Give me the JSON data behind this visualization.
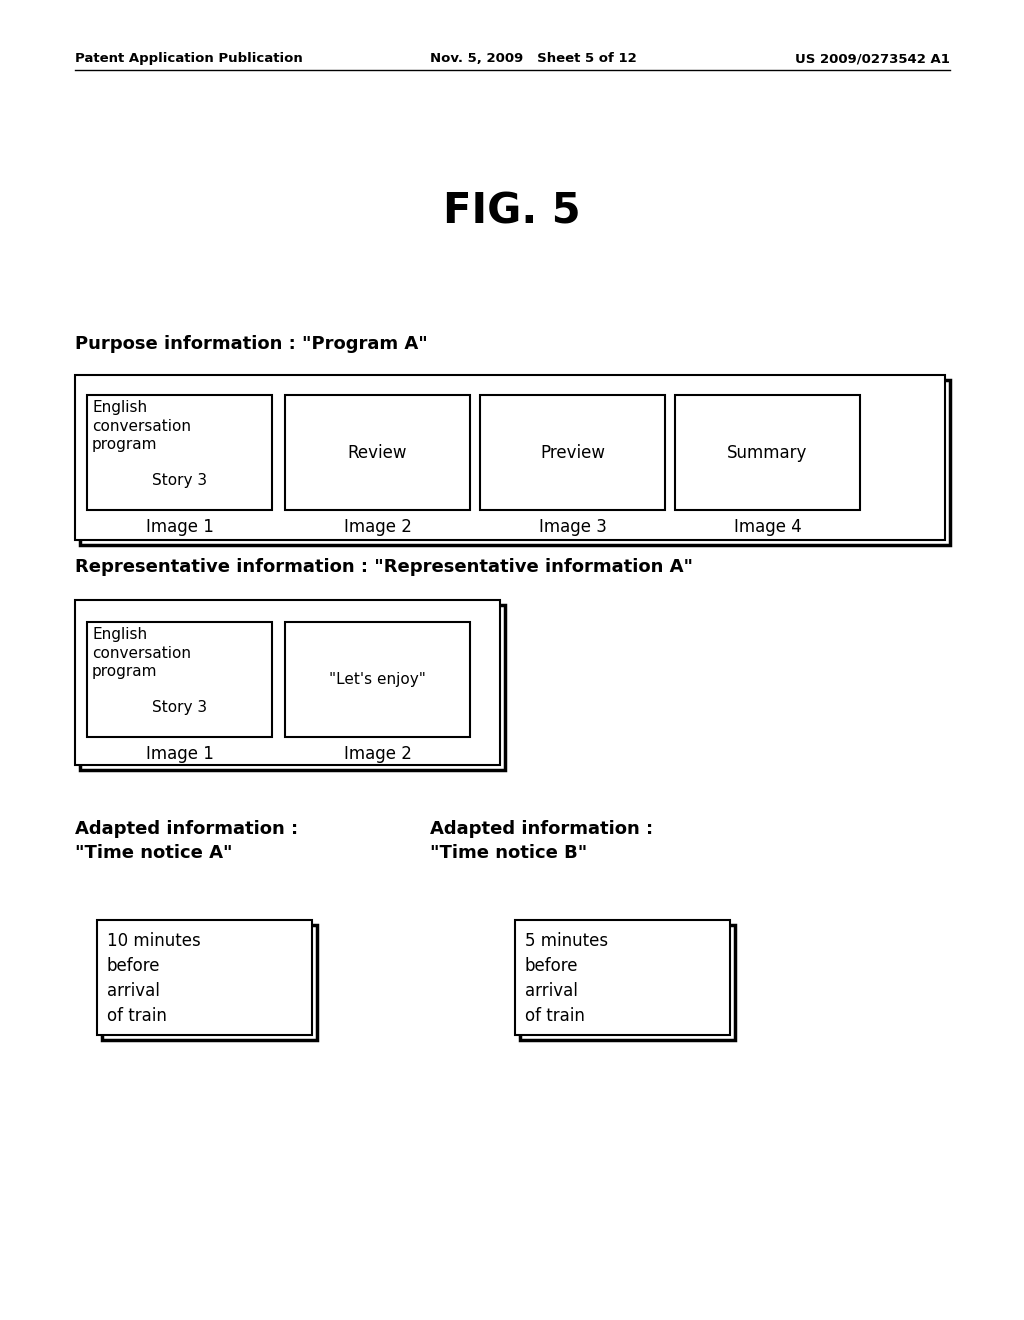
{
  "bg_color": "#ffffff",
  "header_left": "Patent Application Publication",
  "header_mid": "Nov. 5, 2009   Sheet 5 of 12",
  "header_right": "US 2009/0273542 A1",
  "fig_title": "FIG. 5",
  "section1_label": "Purpose information : \"Program A\"",
  "section2_label": "Representative information : \"Representative information A\"",
  "section3a_label": "Adapted information :\n\"Time notice A\"",
  "section3b_label": "Adapted information :\n\"Time notice B\"",
  "img1_lines": [
    "English",
    "conversation",
    "program",
    "Story 3"
  ],
  "img1_label": "Image 1",
  "img2_label": "Review",
  "img3_label": "Preview",
  "img4_label": "Summary",
  "img2_text": "Image 2",
  "img3_text": "Image 3",
  "img4_text": "Image 4",
  "rep_img1_lines": [
    "English",
    "conversation",
    "program",
    "Story 3"
  ],
  "rep_img1_label": "Image 1",
  "rep_img2_content": "\"Let's enjoy\"",
  "rep_img2_label": "Image 2",
  "adapted_a_text": "10 minutes\nbefore\narrival\nof train",
  "adapted_b_text": "5 minutes\nbefore\narrival\nof train"
}
